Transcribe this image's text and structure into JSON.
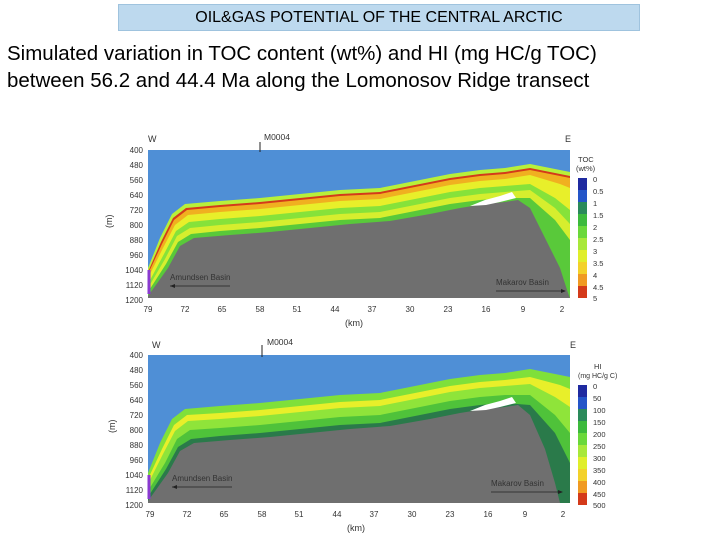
{
  "header": {
    "title": "OIL&GAS POTENTIAL OF THE CENTRAL ARCTIC"
  },
  "subtitle": {
    "line1": "Simulated variation in TOC content (wt%) and HI (mg HC/g TOC)",
    "line2": "between 56.2 and 44.4 Ma along the Lomonosov Ridge transect"
  },
  "colors": {
    "sea": "#4f8fd6",
    "basement": "#6f6f6f",
    "green": "#7fe03a",
    "yellow": "#e8ef2a",
    "orange": "#f0a020",
    "red": "#d43a1a"
  },
  "panels": [
    {
      "side_west": "W",
      "side_east": "E",
      "site_label": "M0004",
      "depth_axis_label": "(m)",
      "depth_ticks": [
        "400",
        "480",
        "560",
        "640",
        "720",
        "800",
        "880",
        "960",
        "1040",
        "1120",
        "1200"
      ],
      "distance_axis_label": "(km)",
      "distance_ticks": [
        "79",
        "72",
        "65",
        "58",
        "51",
        "44",
        "37",
        "30",
        "23",
        "16",
        "9",
        "2"
      ],
      "basin_left": "Amundsen Basin",
      "basin_right": "Makarov Basin",
      "legend_title_1": "TOC",
      "legend_title_2": "(wt%)",
      "legend_values": [
        "0",
        "0.5",
        "1",
        "1.5",
        "2",
        "2.5",
        "3",
        "3.5",
        "4",
        "4.5",
        "5"
      ]
    },
    {
      "side_west": "W",
      "side_east": "E",
      "site_label": "M0004",
      "depth_axis_label": "(m)",
      "depth_ticks": [
        "400",
        "480",
        "560",
        "640",
        "720",
        "800",
        "880",
        "960",
        "1040",
        "1120",
        "1200"
      ],
      "distance_axis_label": "(km)",
      "distance_ticks": [
        "79",
        "72",
        "65",
        "58",
        "51",
        "44",
        "37",
        "30",
        "23",
        "16",
        "9",
        "2"
      ],
      "basin_left": "Amundsen Basin",
      "basin_right": "Makarov Basin",
      "legend_title_1": "HI",
      "legend_title_2": "(mg HC/g C)",
      "legend_values": [
        "0",
        "50",
        "100",
        "150",
        "200",
        "250",
        "300",
        "350",
        "400",
        "450",
        "500"
      ]
    }
  ]
}
